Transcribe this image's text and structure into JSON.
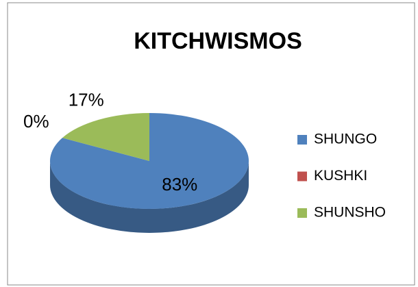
{
  "chart_data": {
    "type": "pie",
    "title": "KITCHWISMOS",
    "categories": [
      "SHUNGO",
      "KUSHKI",
      "SHUNSHO"
    ],
    "values": [
      83,
      0,
      17
    ],
    "value_labels": [
      "83%",
      "0%",
      "17%"
    ],
    "colors": [
      "#4f81bd",
      "#c0504d",
      "#9bbb59"
    ],
    "legend": "right"
  }
}
